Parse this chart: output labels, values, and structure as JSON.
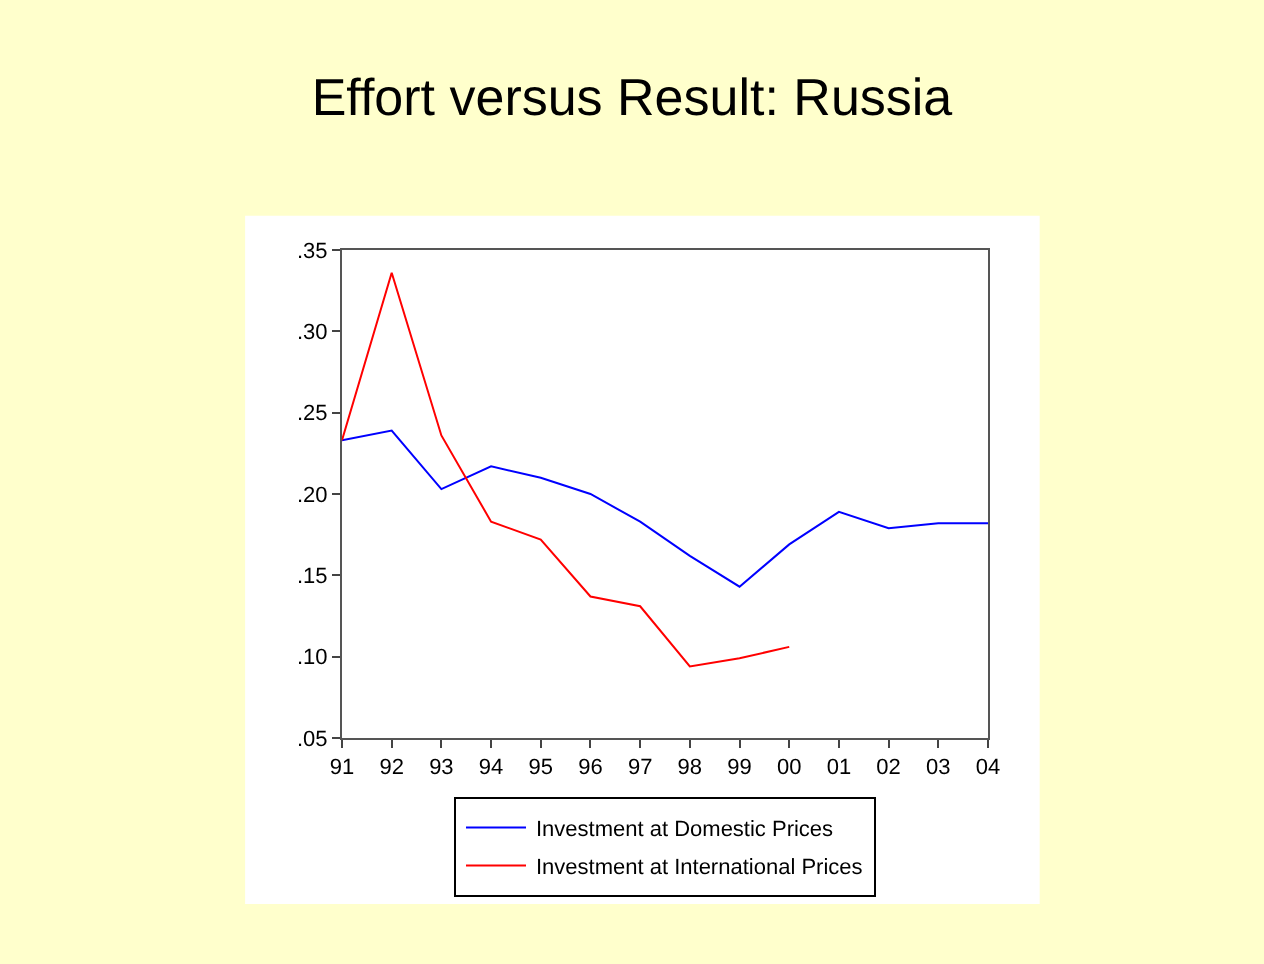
{
  "chart_data": {
    "type": "line",
    "title": "Effort versus Result: Russia",
    "categories": [
      "91",
      "92",
      "93",
      "94",
      "95",
      "96",
      "97",
      "98",
      "99",
      "00",
      "01",
      "02",
      "03",
      "04"
    ],
    "series": [
      {
        "name": "Investment at Domestic Prices",
        "color": "#0000ff",
        "values": [
          0.233,
          0.239,
          0.203,
          0.217,
          0.21,
          0.2,
          0.183,
          0.162,
          0.143,
          0.169,
          0.189,
          0.179,
          0.182,
          0.182
        ]
      },
      {
        "name": "Investment at International Prices",
        "color": "#ff0000",
        "values": [
          0.233,
          0.336,
          0.236,
          0.183,
          0.172,
          0.137,
          0.131,
          0.094,
          0.099,
          0.106,
          null,
          null,
          null,
          null
        ]
      }
    ],
    "ylim": [
      0.05,
      0.35
    ],
    "yticks": [
      {
        "value": 0.05,
        "label": ".05"
      },
      {
        "value": 0.1,
        "label": ".10"
      },
      {
        "value": 0.15,
        "label": ".15"
      },
      {
        "value": 0.2,
        "label": ".20"
      },
      {
        "value": 0.25,
        "label": ".25"
      },
      {
        "value": 0.3,
        "label": ".30"
      },
      {
        "value": 0.35,
        "label": ".35"
      }
    ],
    "legend": "bottom",
    "marker": "none",
    "line_style": "solid"
  }
}
